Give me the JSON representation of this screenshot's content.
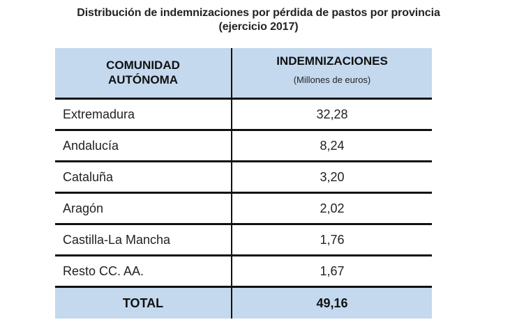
{
  "title": {
    "line1": "Distribución de indemnizaciones por pérdida de pastos por provincia",
    "line2": "(ejercicio 2017)"
  },
  "table": {
    "header": {
      "col1_line1": "COMUNIDAD",
      "col1_line2": "AUTÓNOMA",
      "col2_line1": "INDEMNIZACIONES",
      "col2_line2": "(Millones de euros)"
    },
    "rows": [
      {
        "region": "Extremadura",
        "value": "32,28"
      },
      {
        "region": "Andalucía",
        "value": "8,24"
      },
      {
        "region": "Cataluña",
        "value": "3,20"
      },
      {
        "region": "Aragón",
        "value": "2,02"
      },
      {
        "region": "Castilla-La Mancha",
        "value": "1,76"
      },
      {
        "region": "Resto CC. AA.",
        "value": "1,67"
      }
    ],
    "total": {
      "label": "TOTAL",
      "value": "49,16"
    }
  },
  "colors": {
    "header_background": "#c4d9ee",
    "rule_color": "#111111"
  }
}
